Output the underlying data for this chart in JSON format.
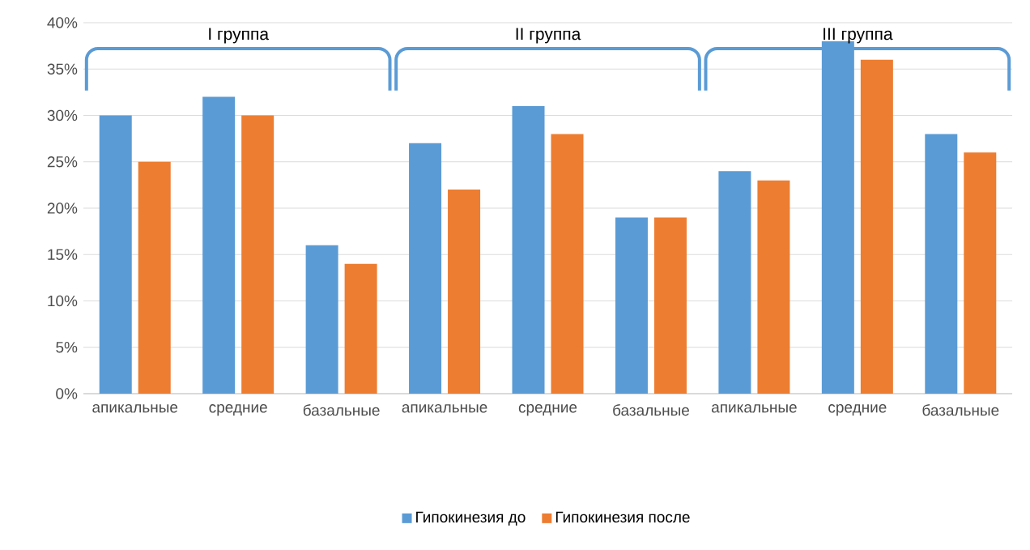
{
  "chart_data": {
    "type": "bar",
    "categories": [
      "апикальные",
      "средние",
      "базальные",
      "апикальные",
      "средние",
      "базальные",
      "апикальные",
      "средние",
      "базальные"
    ],
    "series": [
      {
        "name": "Гипокинезия до",
        "color": "#5b9bd5",
        "values": [
          30,
          32,
          16,
          27,
          31,
          19,
          24,
          38,
          28
        ]
      },
      {
        "name": "Гипокинезия после",
        "color": "#ed7d31",
        "values": [
          25,
          30,
          14,
          22,
          28,
          19,
          23,
          36,
          26
        ]
      }
    ],
    "ylim": [
      0,
      40
    ],
    "yticks": [
      {
        "value": 0,
        "label": "0%"
      },
      {
        "value": 5,
        "label": "5%"
      },
      {
        "value": 10,
        "label": "10%"
      },
      {
        "value": 15,
        "label": "15%"
      },
      {
        "value": 20,
        "label": "20%"
      },
      {
        "value": 25,
        "label": "25%"
      },
      {
        "value": 30,
        "label": "30%"
      },
      {
        "value": 35,
        "label": "35%"
      },
      {
        "value": 40,
        "label": "40%"
      }
    ],
    "annotations": [
      "I группа",
      "II группа",
      "III группа"
    ],
    "grid": "y",
    "legend": "bottom"
  }
}
